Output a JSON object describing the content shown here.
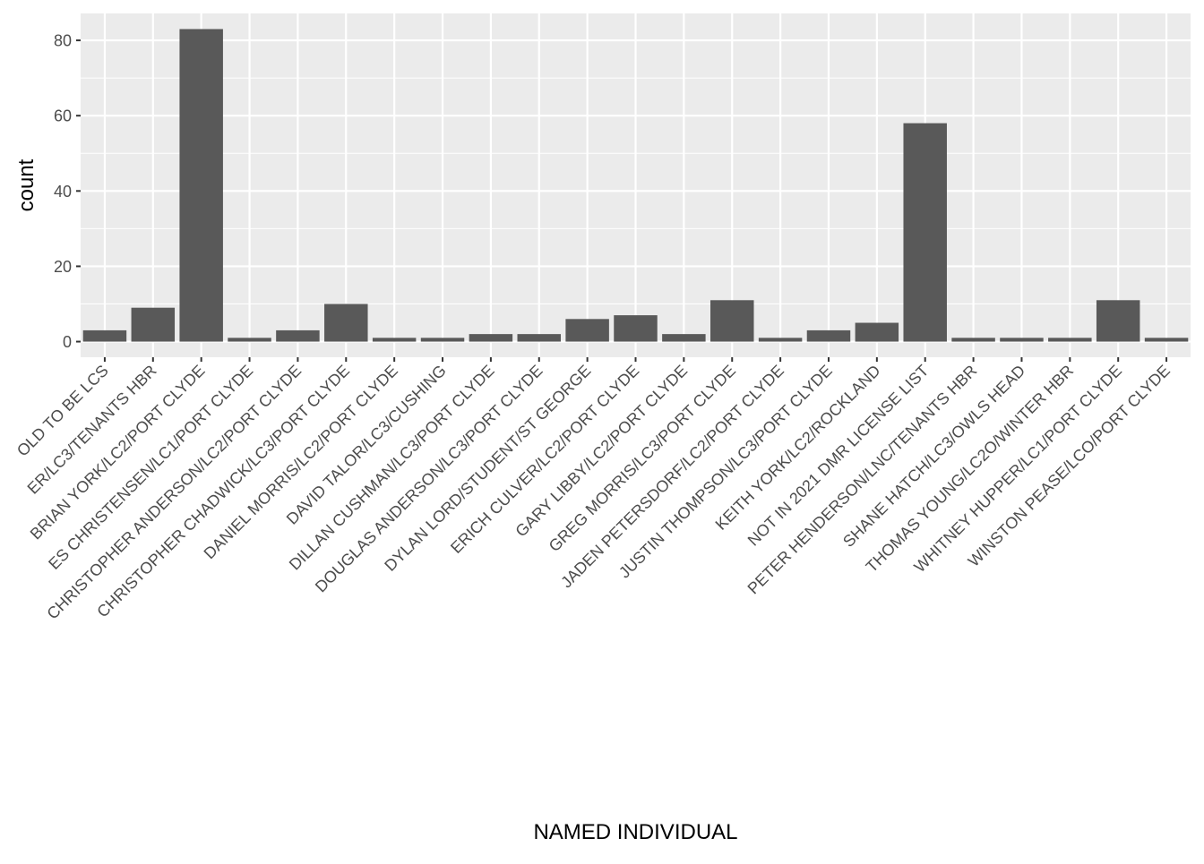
{
  "chart_data": {
    "type": "bar",
    "title": "",
    "xlabel": "NAMED INDIVIDUAL",
    "ylabel": "count",
    "ylim": [
      -4.15,
      87.15
    ],
    "yticks": [
      0,
      20,
      40,
      60,
      80
    ],
    "grid": true,
    "colors": {
      "bar": "#595959",
      "panel_bg": "#ebebeb",
      "grid_major": "#ffffff",
      "tick": "#333333",
      "tick_label": "#4d4d4d",
      "axis_title": "#000000"
    },
    "categories": [
      "OLD TO BE LCS",
      "ER/LC3/TENANTS HBR",
      "BRIAN YORK/LC2/PORT CLYDE",
      "ES CHRISTENSEN/LC1/PORT CLYDE",
      "CHRISTOPHER ANDERSON/LC2/PORT CLYDE",
      "CHRISTOPHER CHADWICK/LC3/PORT CLYDE",
      "DANIEL MORRIS/LC2/PORT CLYDE",
      "DAVID TALOR/LC3/CUSHING",
      "DILLAN CUSHMAN/LC3/PORT CLYDE",
      "DOUGLAS ANDERSON/LC3/PORT CLYDE",
      "DYLAN LORD/STUDENT/ST GEORGE",
      "ERICH CULVER/LC2/PORT CLYDE",
      "GARY LIBBY/LC2/PORT CLYDE",
      "GREG MORRIS/LC3/PORT CLYDE",
      "JADEN PETERSDORF/LC2/PORT CLYDE",
      "JUSTIN THOMPSON/LC3/PORT CLYDE",
      "KEITH YORK/LC2/ROCKLAND",
      "NOT IN 2021 DMR LICENSE LIST",
      "PETER HENDERSON/LNC/TENANTS HBR",
      "SHANE HATCH/LC3/OWLS HEAD",
      "THOMAS YOUNG/LC2O/WINTER HBR",
      "WHITNEY HUPPER/LC1/PORT CLYDE",
      "WINSTON PEASE/LCO/PORT CLYDE"
    ],
    "values": [
      3,
      9,
      83,
      1,
      3,
      10,
      1,
      1,
      2,
      2,
      6,
      7,
      2,
      11,
      1,
      3,
      5,
      58,
      1,
      1,
      1,
      11,
      1
    ]
  }
}
